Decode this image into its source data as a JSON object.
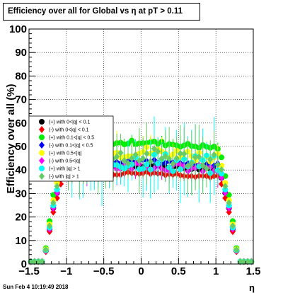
{
  "title": "Efficiency over all for Global vs   η at pT > 0.11",
  "footer_date": "Sun Feb  4 10:19:49 2018",
  "chart_data": {
    "type": "scatter",
    "title": "Efficiency over all for Global vs   η at pT > 0.11",
    "xlabel": "η",
    "ylabel": "Efficiency over all (%)",
    "xlim": [
      -1.5,
      1.5
    ],
    "ylim": [
      0,
      100
    ],
    "x_ticks": [
      "−1.5",
      "−1",
      "−0.5",
      "0",
      "0.5",
      "1",
      "1.5"
    ],
    "y_ticks": [
      "0",
      "10",
      "20",
      "30",
      "40",
      "50",
      "60",
      "70",
      "80",
      "90",
      "100"
    ],
    "grid": true,
    "legend_position": "left",
    "series": [
      {
        "name": "(+) with 0<|q| < 0.1",
        "color": "#000000",
        "plateau": 42,
        "err": 2
      },
      {
        "name": "(-) with 0<|q| < 0.1",
        "color": "#ff0000",
        "plateau": 39,
        "err": 2
      },
      {
        "name": "(+) with 0.1<|q| < 0.5",
        "color": "#00ee00",
        "plateau": 52,
        "err": 3
      },
      {
        "name": "(-) with 0.1<|q| < 0.5",
        "color": "#0000ff",
        "plateau": 44,
        "err": 3
      },
      {
        "name": "(+) with 0.5<|q|",
        "color": "#ffff00",
        "plateau": 48,
        "err": 8
      },
      {
        "name": "(-) with 0.5<|q|",
        "color": "#ff00ff",
        "plateau": 42,
        "err": 6
      },
      {
        "name": "(+) with |q| > 1",
        "color": "#00ffff",
        "plateau": 44,
        "err": 14
      },
      {
        "name": "(-) with |q| > 1",
        "color": "#66cc66",
        "plateau": 46,
        "err": 12
      }
    ]
  }
}
